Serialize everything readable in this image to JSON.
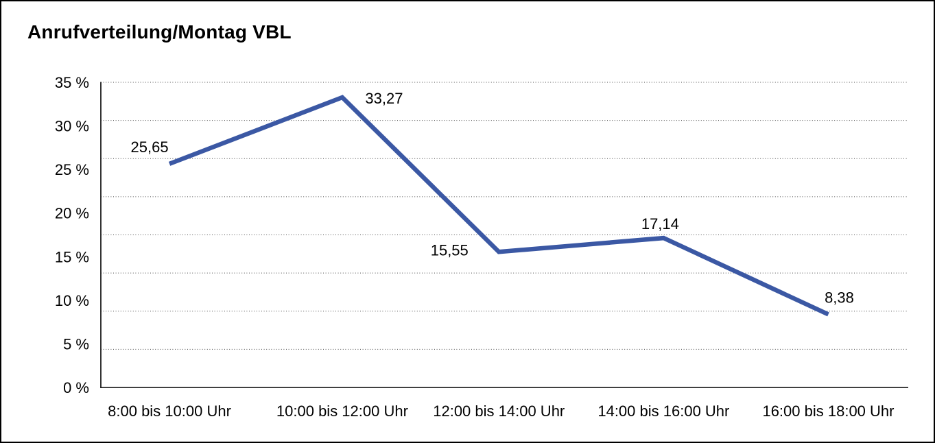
{
  "page": {
    "title": "Anrufverteilung/Montag VBL"
  },
  "chart_data": {
    "type": "line",
    "title": "Anrufverteilung/Montag VBL",
    "categories": [
      "8:00 bis 10:00 Uhr",
      "10:00 bis 12:00 Uhr",
      "12:00 bis 14:00 Uhr",
      "14:00 bis 16:00 Uhr",
      "16:00 bis 18:00 Uhr"
    ],
    "values": [
      25.65,
      33.27,
      15.55,
      17.14,
      8.38
    ],
    "value_labels": [
      "25,65",
      "33,27",
      "15,55",
      "17,14",
      "8,38"
    ],
    "y_tick_labels": [
      "35 %",
      "30 %",
      "25 %",
      "20 %",
      "15 %",
      "10 %",
      "5 %",
      "0 %"
    ],
    "ylim": [
      0,
      35
    ],
    "y_tick_interval": 5,
    "unit": "%",
    "decimal_separator": ",",
    "grid": "horizontal-dotted",
    "legend_position": "none",
    "line_color": "#3B58A4",
    "grid_color": "#4a4a4a",
    "axis_color": "#000000"
  }
}
